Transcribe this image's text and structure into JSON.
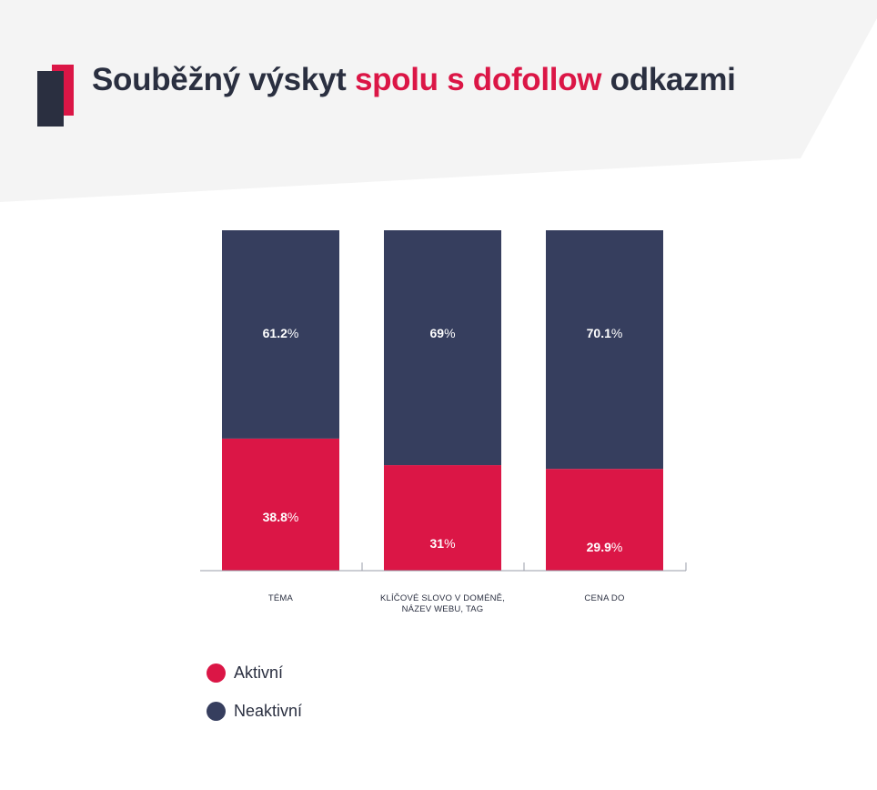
{
  "title": {
    "part1": "Souběžný výskyt ",
    "highlight": "spolu s dofollow",
    "part2": " odkazmi"
  },
  "colors": {
    "accent": "#db1646",
    "navy": "#363e5e",
    "dark": "#2a2f40",
    "header_bg": "#f4f4f4"
  },
  "chart_data": {
    "type": "bar",
    "stacked": true,
    "categories": [
      [
        "TÉMA"
      ],
      [
        "KLÍČOVÉ SLOVO V DOMÉNĚ,",
        "NÁZEV WEBU, TAG"
      ],
      [
        "CENA DO"
      ]
    ],
    "series": [
      {
        "name": "Aktivní",
        "color": "#db1646",
        "values": [
          38.8,
          31,
          29.9
        ],
        "labels": [
          "38.8",
          "31",
          "29.9"
        ]
      },
      {
        "name": "Neaktivní",
        "color": "#363e5e",
        "values": [
          61.2,
          69,
          70.1
        ],
        "labels": [
          "61.2",
          "69",
          "70.1"
        ]
      }
    ],
    "unit": "%",
    "ylim": [
      0,
      100
    ],
    "legend": "bottom-left"
  }
}
